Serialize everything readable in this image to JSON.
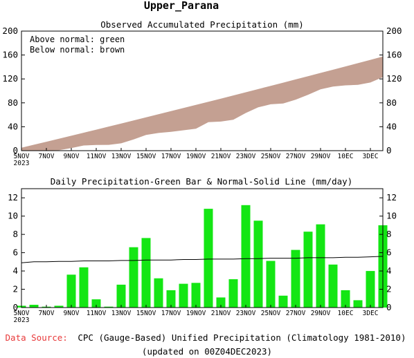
{
  "region_title": "Upper_Parana",
  "footer": {
    "source_label": "Data Source:",
    "source_text": "CPC (Gauge-Based) Unified Precipitation (Climatology 1981-2010)",
    "updated": "(updated on 00Z04DEC2023)"
  },
  "colors": {
    "below_normal_fill": "#c4a092",
    "daily_bar": "#14e614",
    "normal_line": "#000000",
    "source_label": "#e8393a"
  },
  "chart_data": [
    {
      "type": "area",
      "title": "Observed Accumulated Precipitation (mm)",
      "legend": [
        "Above normal: green",
        "Below normal: brown"
      ],
      "legend_placement": "top-left",
      "ylim": [
        0,
        200
      ],
      "yticks": [
        "0",
        "40",
        "80",
        "120",
        "160",
        "200"
      ],
      "xtick_labels": [
        "5NOV",
        "7NOV",
        "9NOV",
        "11NOV",
        "13NOV",
        "15NOV",
        "17NOV",
        "19NOV",
        "21NOV",
        "23NOV",
        "25NOV",
        "27NOV",
        "29NOV",
        "10EC",
        "3DEC"
      ],
      "xtick_year": "2023",
      "x": [
        "5NOV",
        "6NOV",
        "7NOV",
        "8NOV",
        "9NOV",
        "10NOV",
        "11NOV",
        "12NOV",
        "13NOV",
        "14NOV",
        "15NOV",
        "16NOV",
        "17NOV",
        "18NOV",
        "19NOV",
        "20NOV",
        "21NOV",
        "22NOV",
        "23NOV",
        "24NOV",
        "25NOV",
        "26NOV",
        "27NOV",
        "28NOV",
        "29NOV",
        "30NOV",
        "1DEC",
        "2DEC",
        "3DEC",
        "4DEC"
      ],
      "series": [
        {
          "name": "Observed",
          "values": [
            0.2,
            0.4,
            0.5,
            0.7,
            4.3,
            8.7,
            9.6,
            9.7,
            12.2,
            18.8,
            26.4,
            29.6,
            31.5,
            34.1,
            36.8,
            47.6,
            48.7,
            51.8,
            63.0,
            72.5,
            77.6,
            78.9,
            85.2,
            93.5,
            102.6,
            107.3,
            109.2,
            110.0,
            114.0,
            123.0
          ]
        },
        {
          "name": "Normal",
          "values": [
            4.9,
            9.9,
            14.9,
            20.0,
            25.0,
            30.1,
            35.2,
            40.3,
            45.4,
            50.5,
            55.7,
            60.9,
            66.1,
            71.3,
            76.5,
            81.8,
            87.1,
            92.4,
            97.7,
            103.0,
            108.4,
            113.8,
            119.2,
            124.6,
            130.0,
            135.4,
            140.9,
            146.4,
            151.9,
            157.5
          ]
        }
      ]
    },
    {
      "type": "bar",
      "title": "Daily Precipitation-Green Bar & Normal-Solid Line (mm/day)",
      "ylim": [
        0,
        13
      ],
      "yticks": [
        "0",
        "2",
        "4",
        "6",
        "8",
        "10",
        "12"
      ],
      "xtick_labels": [
        "5NOV",
        "7NOV",
        "9NOV",
        "11NOV",
        "13NOV",
        "15NOV",
        "17NOV",
        "19NOV",
        "21NOV",
        "23NOV",
        "25NOV",
        "27NOV",
        "29NOV",
        "10EC",
        "3DEC"
      ],
      "xtick_year": "2023",
      "x": [
        "5NOV",
        "6NOV",
        "7NOV",
        "8NOV",
        "9NOV",
        "10NOV",
        "11NOV",
        "12NOV",
        "13NOV",
        "14NOV",
        "15NOV",
        "16NOV",
        "17NOV",
        "18NOV",
        "19NOV",
        "20NOV",
        "21NOV",
        "22NOV",
        "23NOV",
        "24NOV",
        "25NOV",
        "26NOV",
        "27NOV",
        "28NOV",
        "29NOV",
        "30NOV",
        "1DEC",
        "2DEC",
        "3DEC",
        "4DEC"
      ],
      "series": [
        {
          "name": "Daily Precipitation",
          "values": [
            0.2,
            0.3,
            0.1,
            0.2,
            3.6,
            4.4,
            0.9,
            0.1,
            2.5,
            6.6,
            7.6,
            3.2,
            1.9,
            2.6,
            2.7,
            10.8,
            1.1,
            3.1,
            11.2,
            9.5,
            5.1,
            1.3,
            6.3,
            8.3,
            9.1,
            4.7,
            1.9,
            0.8,
            4.0,
            9.0
          ]
        },
        {
          "name": "Normal",
          "values": [
            4.9,
            5.0,
            5.0,
            5.05,
            5.05,
            5.1,
            5.1,
            5.1,
            5.15,
            5.15,
            5.2,
            5.2,
            5.2,
            5.25,
            5.25,
            5.3,
            5.3,
            5.3,
            5.35,
            5.35,
            5.4,
            5.4,
            5.4,
            5.45,
            5.45,
            5.45,
            5.5,
            5.5,
            5.55,
            5.6
          ]
        }
      ]
    }
  ]
}
